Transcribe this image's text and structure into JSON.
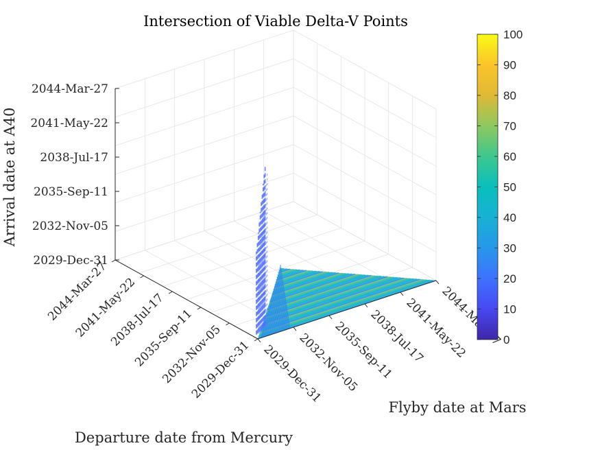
{
  "chart_data": {
    "type": "scatter3d",
    "title": "Intersection of Viable Delta-V Points",
    "xlabel": "Departure date from Mercury",
    "ylabel": "Flyby date at Mars",
    "zlabel": "Arrival date at A40",
    "x_ticks": [
      "2029-Dec-31",
      "2032-Nov-05",
      "2035-Sep-11",
      "2038-Jul-17",
      "2041-May-22",
      "2044-Mar-27"
    ],
    "y_ticks": [
      "2029-Dec-31",
      "2032-Nov-05",
      "2035-Sep-11",
      "2038-Jul-17",
      "2041-May-22",
      "2044-Mar-27"
    ],
    "z_ticks": [
      "2029-Dec-31",
      "2032-Nov-05",
      "2035-Sep-11",
      "2038-Jul-17",
      "2041-May-22",
      "2044-Mar-27"
    ],
    "axis_range": [
      "2029-Dec-31",
      "2044-Mar-27"
    ],
    "grid": true,
    "colorbar": {
      "ticks": [
        0,
        10,
        20,
        30,
        40,
        50,
        60,
        70,
        80,
        90,
        100
      ],
      "range": [
        0,
        100
      ],
      "colormap": "parula",
      "placement": "right"
    },
    "surface": {
      "description_free": true,
      "ramp_departure_max": "2030-Dec-15",
      "spike_heights_z": [
        "2037-Mar-10",
        "2037-Nov-20",
        "2038-Aug-05",
        "2039-Jun-15",
        "2040-Feb-20",
        "2040-Nov-01",
        "2041-Jul-10",
        "2042-Mar-15",
        "2042-Nov-20",
        "2043-Jul-01"
      ]
    }
  }
}
